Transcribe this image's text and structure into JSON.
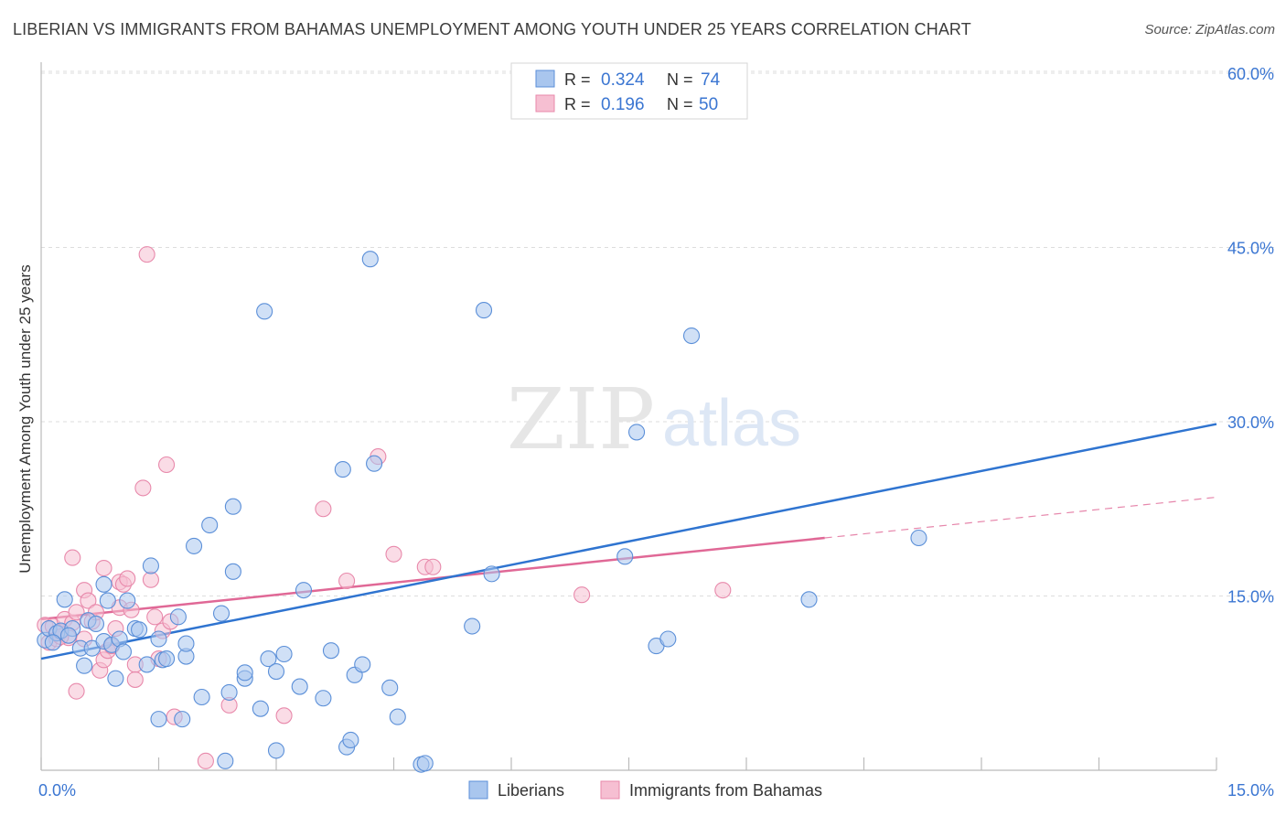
{
  "header": {
    "title": "LIBERIAN VS IMMIGRANTS FROM BAHAMAS UNEMPLOYMENT AMONG YOUTH UNDER 25 YEARS CORRELATION CHART",
    "source": "Source: ZipAtlas.com"
  },
  "watermark": {
    "zip": "ZIP",
    "atlas": "atlas"
  },
  "colors": {
    "blue_fill": "#a9c6ee",
    "blue_stroke": "#5b8fd8",
    "blue_line": "#2f74d0",
    "pink_fill": "#f6bfd2",
    "pink_stroke": "#e889ab",
    "pink_line": "#e06896",
    "axis_text": "#3b76d2",
    "grid": "#dddddd"
  },
  "legend": {
    "rows": [
      {
        "r_label": "R =",
        "r_value": "0.324",
        "n_label": "N =",
        "n_value": "74"
      },
      {
        "r_label": "R =",
        "r_value": "0.196",
        "n_label": "N =",
        "n_value": "50"
      }
    ]
  },
  "chart_data": {
    "type": "scatter",
    "title": "LIBERIAN VS IMMIGRANTS FROM BAHAMAS UNEMPLOYMENT AMONG YOUTH UNDER 25 YEARS CORRELATION CHART",
    "xlabel": "",
    "ylabel": "Unemployment Among Youth under 25 years",
    "xlim": [
      0,
      15
    ],
    "ylim": [
      0,
      60
    ],
    "x_tick_labels": [
      "0.0%",
      "15.0%"
    ],
    "y_tick_labels": [
      "15.0%",
      "30.0%",
      "45.0%",
      "60.0%"
    ],
    "y_ticks": [
      15,
      30,
      45,
      60
    ],
    "series": [
      {
        "name": "Liberians",
        "r": 0.324,
        "n": 74,
        "trend": {
          "x0": 0,
          "y0": 9.6,
          "x1": 15,
          "y1": 29.8
        },
        "points": [
          [
            0.05,
            11.2
          ],
          [
            0.1,
            12.2
          ],
          [
            0.2,
            11.8
          ],
          [
            0.25,
            12.0
          ],
          [
            0.3,
            14.7
          ],
          [
            0.4,
            12.2
          ],
          [
            0.5,
            10.5
          ],
          [
            0.55,
            9.0
          ],
          [
            0.6,
            12.9
          ],
          [
            0.65,
            10.5
          ],
          [
            0.8,
            11.1
          ],
          [
            0.8,
            16.0
          ],
          [
            0.85,
            14.6
          ],
          [
            0.9,
            10.8
          ],
          [
            0.95,
            7.9
          ],
          [
            1.0,
            11.3
          ],
          [
            1.05,
            10.2
          ],
          [
            1.1,
            14.6
          ],
          [
            1.2,
            12.2
          ],
          [
            1.25,
            12.1
          ],
          [
            1.35,
            9.1
          ],
          [
            1.4,
            17.6
          ],
          [
            1.5,
            4.4
          ],
          [
            1.5,
            11.3
          ],
          [
            1.55,
            9.5
          ],
          [
            1.6,
            9.6
          ],
          [
            1.75,
            13.2
          ],
          [
            1.8,
            4.4
          ],
          [
            1.85,
            9.8
          ],
          [
            1.85,
            10.9
          ],
          [
            1.95,
            19.3
          ],
          [
            2.05,
            6.3
          ],
          [
            2.15,
            21.1
          ],
          [
            2.3,
            13.5
          ],
          [
            2.35,
            0.8
          ],
          [
            2.4,
            6.7
          ],
          [
            2.45,
            17.1
          ],
          [
            2.45,
            22.7
          ],
          [
            2.6,
            7.9
          ],
          [
            2.6,
            8.4
          ],
          [
            2.9,
            9.6
          ],
          [
            2.8,
            5.3
          ],
          [
            2.85,
            39.5
          ],
          [
            3.0,
            1.7
          ],
          [
            3.0,
            8.5
          ],
          [
            3.1,
            10.0
          ],
          [
            3.3,
            7.2
          ],
          [
            3.35,
            15.5
          ],
          [
            3.6,
            6.2
          ],
          [
            3.7,
            10.3
          ],
          [
            3.85,
            25.9
          ],
          [
            3.9,
            2.0
          ],
          [
            3.95,
            2.6
          ],
          [
            4.0,
            8.2
          ],
          [
            4.1,
            9.1
          ],
          [
            4.2,
            44.0
          ],
          [
            4.25,
            26.4
          ],
          [
            4.45,
            7.1
          ],
          [
            4.55,
            4.6
          ],
          [
            4.85,
            0.5
          ],
          [
            4.9,
            0.6
          ],
          [
            5.5,
            12.4
          ],
          [
            5.65,
            39.6
          ],
          [
            5.75,
            16.9
          ],
          [
            7.45,
            18.4
          ],
          [
            7.6,
            29.1
          ],
          [
            7.85,
            10.7
          ],
          [
            8.0,
            11.3
          ],
          [
            8.3,
            37.4
          ],
          [
            9.8,
            14.7
          ],
          [
            11.2,
            20.0
          ],
          [
            0.15,
            11.0
          ],
          [
            0.35,
            11.6
          ],
          [
            0.7,
            12.6
          ]
        ]
      },
      {
        "name": "Immigrants from Bahamas",
        "r": 0.196,
        "n": 50,
        "trend": {
          "x0": 0,
          "y0": 13.0,
          "x1": 10.0,
          "y1": 20.0,
          "dash_x1": 15,
          "dash_y1": 23.5
        },
        "points": [
          [
            0.05,
            12.5
          ],
          [
            0.1,
            11.0
          ],
          [
            0.15,
            12.4
          ],
          [
            0.2,
            11.3
          ],
          [
            0.25,
            11.9
          ],
          [
            0.3,
            13.0
          ],
          [
            0.35,
            11.4
          ],
          [
            0.4,
            12.7
          ],
          [
            0.4,
            18.3
          ],
          [
            0.45,
            13.6
          ],
          [
            0.45,
            6.8
          ],
          [
            0.55,
            11.3
          ],
          [
            0.55,
            15.5
          ],
          [
            0.6,
            14.6
          ],
          [
            0.65,
            12.8
          ],
          [
            0.7,
            13.6
          ],
          [
            0.75,
            8.6
          ],
          [
            0.8,
            9.5
          ],
          [
            0.8,
            17.4
          ],
          [
            0.85,
            10.3
          ],
          [
            0.9,
            10.7
          ],
          [
            0.95,
            12.2
          ],
          [
            1.0,
            14.0
          ],
          [
            1.0,
            16.2
          ],
          [
            1.05,
            16.0
          ],
          [
            1.1,
            16.5
          ],
          [
            1.15,
            13.8
          ],
          [
            1.2,
            9.1
          ],
          [
            1.2,
            7.8
          ],
          [
            1.3,
            24.3
          ],
          [
            1.35,
            44.4
          ],
          [
            1.4,
            16.4
          ],
          [
            1.45,
            13.2
          ],
          [
            1.5,
            9.6
          ],
          [
            1.55,
            12.0
          ],
          [
            1.6,
            26.3
          ],
          [
            1.65,
            12.8
          ],
          [
            1.7,
            4.6
          ],
          [
            2.1,
            0.8
          ],
          [
            2.4,
            5.6
          ],
          [
            3.1,
            4.7
          ],
          [
            3.6,
            22.5
          ],
          [
            3.9,
            16.3
          ],
          [
            4.3,
            27.0
          ],
          [
            4.5,
            18.6
          ],
          [
            4.9,
            17.5
          ],
          [
            5.0,
            17.5
          ],
          [
            6.9,
            15.1
          ],
          [
            8.7,
            15.5
          ],
          [
            0.25,
            11.5
          ]
        ]
      }
    ],
    "legend_bottom": [
      "Liberians",
      "Immigrants from Bahamas"
    ]
  }
}
